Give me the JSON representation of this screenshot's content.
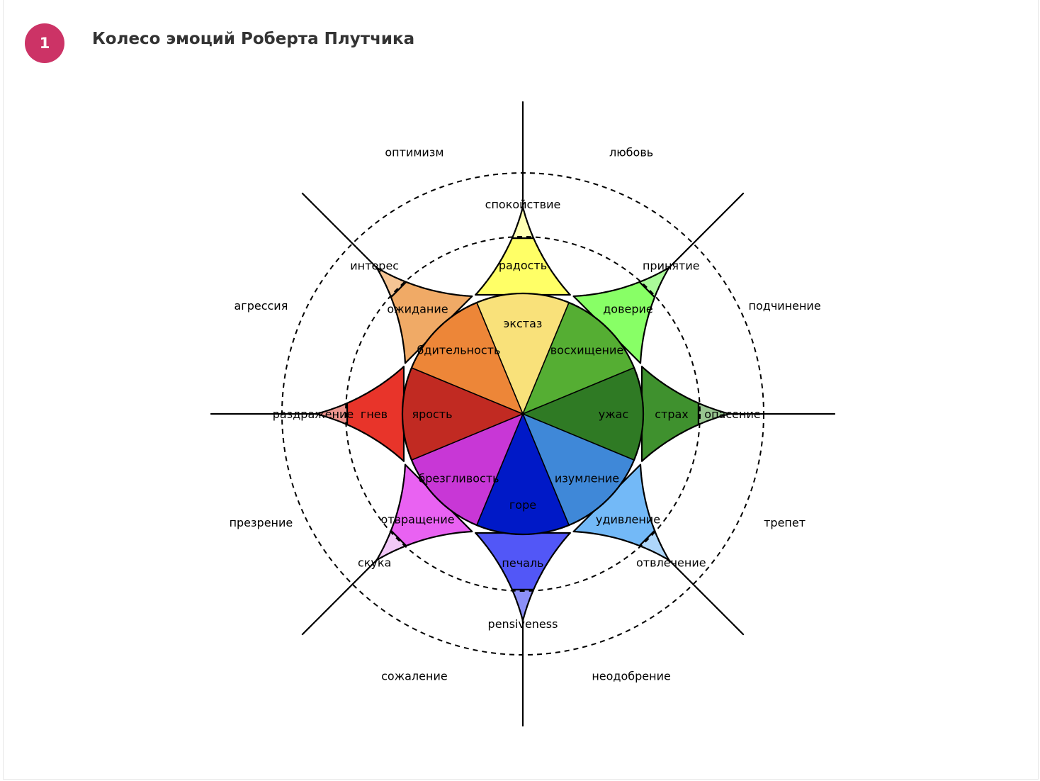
{
  "header": {
    "badge_number": "1",
    "title": "Колесо эмоций Роберта Плутчика"
  },
  "petals": [
    {
      "name": "yellow",
      "angle": 0,
      "colors": [
        "#f9e17a",
        "#ffff66",
        "#ffffb3",
        "#ffffe0"
      ],
      "labels": [
        "экстаз",
        "радость",
        "спокойствие"
      ]
    },
    {
      "name": "lightgreen",
      "angle": 45,
      "colors": [
        "#55ae33",
        "#88ff66",
        "#aafa99",
        "#d4ffcc"
      ],
      "labels": [
        "восхищение",
        "доверие",
        "принятие"
      ]
    },
    {
      "name": "darkgreen",
      "angle": 90,
      "colors": [
        "#2f7a24",
        "#3f912e",
        "#98c590",
        "#cde2c8"
      ],
      "labels": [
        "ужас",
        "страх",
        "опасение"
      ]
    },
    {
      "name": "lightblue",
      "angle": 135,
      "colors": [
        "#3f88d8",
        "#73b9f7",
        "#aed6fa",
        "#d8ebfc"
      ],
      "labels": [
        "изумление",
        "удивление",
        "отвлечение"
      ]
    },
    {
      "name": "blue",
      "angle": 180,
      "colors": [
        "#0019c7",
        "#5257f7",
        "#8c90f7",
        "#c4c6fb"
      ],
      "labels": [
        "горе",
        "печаль",
        "pensiveness"
      ]
    },
    {
      "name": "purple",
      "angle": 225,
      "colors": [
        "#c837d6",
        "#e962f2",
        "#f2c8f7",
        "#f8e2fb"
      ],
      "labels": [
        "брезгливость",
        "отвращение",
        "скука"
      ]
    },
    {
      "name": "red",
      "angle": 270,
      "colors": [
        "#c12a22",
        "#e8342a",
        "#ee958e",
        "#f7c9c6"
      ],
      "labels": [
        "ярость",
        "гнев",
        "раздражение"
      ]
    },
    {
      "name": "orange",
      "angle": 315,
      "colors": [
        "#ed8638",
        "#f0aa66",
        "#f5c494",
        "#fbe3cc"
      ],
      "labels": [
        "бдительность",
        "ожидание",
        "интерес"
      ]
    }
  ],
  "dyads": [
    {
      "text": "любовь"
    },
    {
      "text": "подчинение"
    },
    {
      "text": "трепет"
    },
    {
      "text": "неодобрение"
    },
    {
      "text": "сожаление"
    },
    {
      "text": "презрение"
    },
    {
      "text": "агрессия"
    },
    {
      "text": "оптимизм"
    }
  ]
}
